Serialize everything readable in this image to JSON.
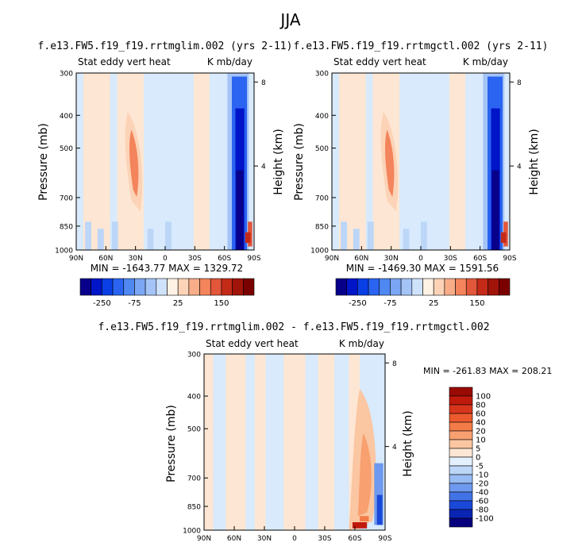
{
  "page": {
    "title": "JJA"
  },
  "chart_data": [
    {
      "type": "heatmap",
      "title": "f.e13.FW5.f19_f19.rrtmglim.002 (yrs 2-11)",
      "left_label": "Stat eddy vert heat",
      "units": "K mb/day",
      "ylabel": "Pressure (mb)",
      "right_label": "Height (km)",
      "x_ticks": [
        "90N",
        "60N",
        "30N",
        "0",
        "30S",
        "60S",
        "90S"
      ],
      "y_ticks": [
        "300",
        "400",
        "500",
        "700",
        "850",
        "1000"
      ],
      "height_ticks": [
        "8",
        "4"
      ],
      "stats": "MIN = -1643.77   MAX = 1329.72",
      "colorbar": {
        "orientation": "horizontal",
        "labels": [
          "-250",
          "-75",
          "25",
          "150"
        ],
        "colors": [
          "#08008a",
          "#0014c8",
          "#0a3fe6",
          "#2a64f0",
          "#5088f2",
          "#7aa6f4",
          "#a4c4f7",
          "#cfe2fb",
          "#fff1e4",
          "#fcd3b6",
          "#f8ad88",
          "#f3845c",
          "#e2563a",
          "#c42a18",
          "#a0140a",
          "#7a0000"
        ]
      }
    },
    {
      "type": "heatmap",
      "title": "f.e13.FW5.f19_f19.rrtmgctl.002 (yrs 2-11)",
      "left_label": "Stat eddy vert heat",
      "units": "K mb/day",
      "ylabel": "Pressure (mb)",
      "right_label": "Height (km)",
      "x_ticks": [
        "90N",
        "60N",
        "30N",
        "0",
        "30S",
        "60S",
        "90S"
      ],
      "y_ticks": [
        "300",
        "400",
        "500",
        "700",
        "850",
        "1000"
      ],
      "height_ticks": [
        "8",
        "4"
      ],
      "stats": "MIN = -1469.30   MAX = 1591.56",
      "colorbar": {
        "orientation": "horizontal",
        "labels": [
          "-250",
          "-75",
          "25",
          "150"
        ],
        "colors": [
          "#08008a",
          "#0014c8",
          "#0a3fe6",
          "#2a64f0",
          "#5088f2",
          "#7aa6f4",
          "#a4c4f7",
          "#cfe2fb",
          "#fff1e4",
          "#fcd3b6",
          "#f8ad88",
          "#f3845c",
          "#e2563a",
          "#c42a18",
          "#a0140a",
          "#7a0000"
        ]
      }
    },
    {
      "type": "heatmap",
      "title": "f.e13.FW5.f19_f19.rrtmglim.002 - f.e13.FW5.f19_f19.rrtmgctl.002",
      "left_label": "Stat eddy vert heat",
      "units": "K mb/day",
      "ylabel": "Pressure (mb)",
      "right_label": "Height (km)",
      "x_ticks": [
        "90N",
        "60N",
        "30N",
        "0",
        "30S",
        "60S",
        "90S"
      ],
      "y_ticks": [
        "300",
        "400",
        "500",
        "700",
        "850",
        "1000"
      ],
      "height_ticks": [
        "8",
        "4"
      ],
      "stats": "MIN = -261.83   MAX = 208.21",
      "colorbar": {
        "orientation": "vertical",
        "labels": [
          "100",
          "80",
          "60",
          "40",
          "20",
          "10",
          "5",
          "0",
          "-5",
          "-10",
          "-20",
          "-40",
          "-60",
          "-80",
          "-100"
        ],
        "colors": [
          "#9a0a04",
          "#c01a0c",
          "#d8361c",
          "#ec5a2e",
          "#f47c48",
          "#f8a070",
          "#fbc6a2",
          "#fde6d4",
          "#e4f0fd",
          "#bcd6f8",
          "#98bbf3",
          "#6e99ee",
          "#4273e6",
          "#1a48d8",
          "#0a24b4",
          "#06007e"
        ]
      }
    }
  ]
}
